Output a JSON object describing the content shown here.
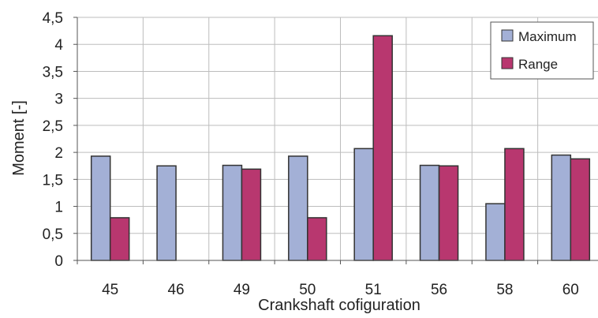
{
  "chart_data": {
    "type": "bar",
    "categories": [
      "45",
      "46",
      "49",
      "50",
      "51",
      "56",
      "58",
      "60"
    ],
    "series": [
      {
        "name": "Maximum",
        "color": "#a3b0d6",
        "values": [
          1.93,
          1.75,
          1.76,
          1.93,
          2.07,
          1.76,
          1.05,
          1.95
        ]
      },
      {
        "name": "Range",
        "color": "#b8376f",
        "values": [
          0.79,
          null,
          1.69,
          0.79,
          4.16,
          1.75,
          2.07,
          1.88
        ]
      }
    ],
    "y_ticks": [
      "0",
      "0,5",
      "1",
      "1,5",
      "2",
      "2,5",
      "3",
      "3,5",
      "4",
      "4,5"
    ],
    "ylim": [
      0,
      4.5
    ],
    "xlabel": "Crankshaft cofiguration",
    "ylabel": "Moment [-]",
    "grid": true,
    "legend_position": "top-right"
  }
}
